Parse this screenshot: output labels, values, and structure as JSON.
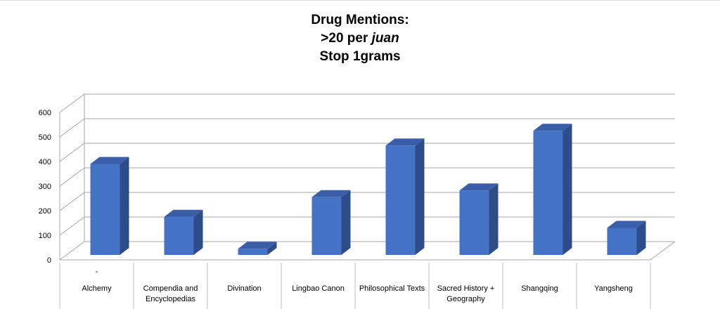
{
  "chart_data": {
    "type": "bar",
    "title_line1": "Drug Mentions:",
    "title_line2_prefix": ">20 per ",
    "title_line2_italic": "juan",
    "title_line3": "Stop 1grams",
    "categories": [
      "Alchemy",
      "Compendia and Encyclopedias",
      "Divination",
      "Lingbao Canon",
      "Philosophical Texts",
      "Sacred History + Geography",
      "Shangqing",
      "Yangsheng"
    ],
    "category_lines": [
      [
        "Alchemy"
      ],
      [
        "Compendia and",
        "Encyclopedias"
      ],
      [
        "Divination"
      ],
      [
        "Lingbao Canon"
      ],
      [
        "Philosophical Texts"
      ],
      [
        "Sacred History +",
        "Geography"
      ],
      [
        "Shangqing"
      ],
      [
        "Yangsheng"
      ]
    ],
    "group_label": "-",
    "values": [
      370,
      155,
      25,
      235,
      445,
      262,
      505,
      110
    ],
    "ylim": [
      0,
      600
    ],
    "yticks": [
      0,
      100,
      200,
      300,
      400,
      500,
      600
    ],
    "grid": true,
    "bar_color": "#4472C4",
    "bar_side_color": "#2F4C8A",
    "bar_top_color": "#3A5EA7"
  }
}
